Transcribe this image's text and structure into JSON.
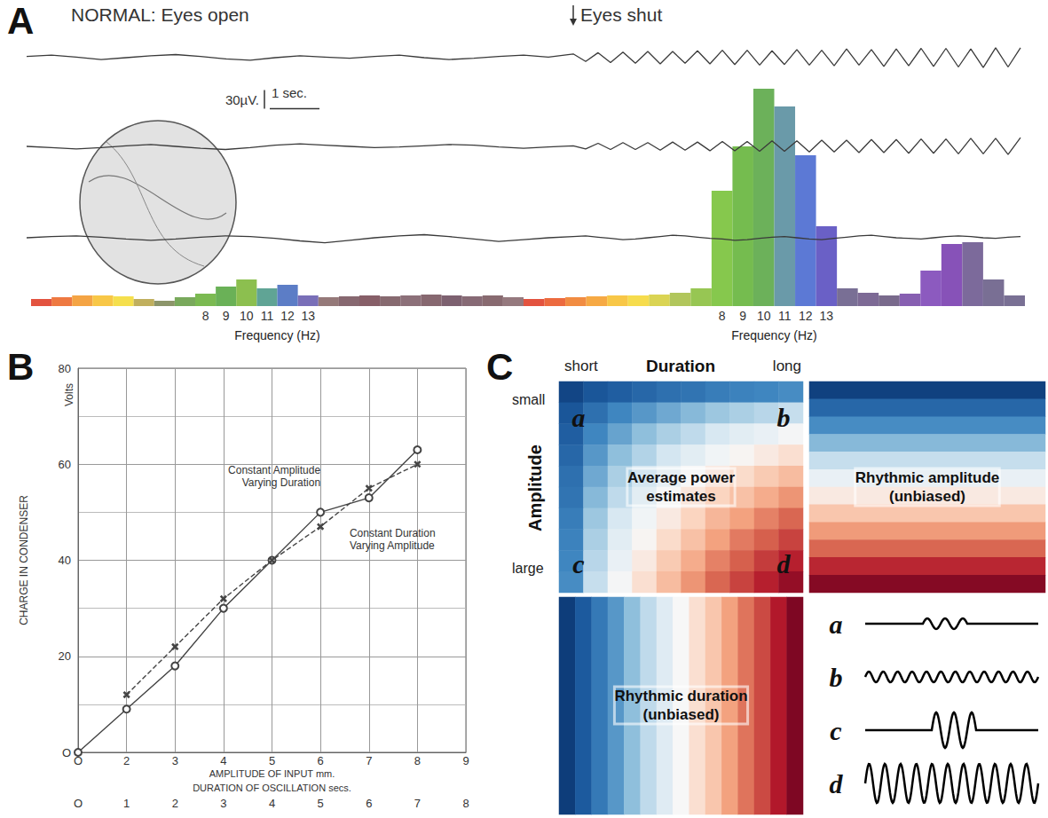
{
  "chart_data": [
    {
      "panel": "A",
      "type": "line",
      "title": "NORMAL: Eyes open",
      "annotations": [
        {
          "text": "Eyes shut",
          "x": 11
        }
      ],
      "scale_bar": {
        "amplitude": 30,
        "amplitude_label": "30µV.",
        "time": 1,
        "time_label": "1 sec."
      },
      "x": [
        0,
        0.5,
        1,
        1.5,
        2,
        2.5,
        3,
        3.5,
        4,
        4.5,
        5,
        5.5,
        6,
        6.5,
        7,
        7.5,
        8,
        8.5,
        9,
        9.5,
        10,
        10.5,
        11,
        11.25,
        11.5,
        11.75,
        12,
        12.25,
        12.5,
        12.75,
        13,
        13.25,
        13.5,
        13.75,
        14,
        14.25,
        14.5,
        14.75,
        15,
        15.25,
        15.5,
        15.75,
        16,
        16.25,
        16.5,
        16.75,
        17,
        17.25,
        17.5,
        17.75,
        18,
        18.25,
        18.5,
        18.75,
        19,
        19.25,
        19.5,
        19.75,
        20
      ],
      "xlim": [
        0,
        20
      ],
      "ylim": [
        -50,
        50
      ],
      "tick_labels": false,
      "series": [
        {
          "color": "#3a3a3a",
          "values": [
            2,
            4,
            1,
            -3,
            0,
            3,
            5,
            2,
            -2,
            -4,
            0,
            3,
            1,
            -1,
            2,
            4,
            0,
            -3,
            -1,
            2,
            4,
            1,
            6,
            -6,
            8,
            -8,
            9,
            -9,
            10,
            -10,
            10,
            -9,
            11,
            -10,
            12,
            -11,
            12,
            -12,
            11,
            -11,
            13,
            -12,
            12,
            -13,
            14,
            -12,
            13,
            -14,
            14,
            -13,
            15,
            -14,
            15,
            -15,
            14,
            -16,
            16,
            -15,
            16
          ]
        },
        {
          "color": "#3a3a3a",
          "values": [
            0,
            -2,
            -4,
            -2,
            1,
            3,
            0,
            -3,
            -5,
            -2,
            2,
            4,
            2,
            0,
            -2,
            -1,
            1,
            3,
            2,
            -1,
            -3,
            -1,
            1,
            -4,
            5,
            -5,
            6,
            -5,
            6,
            -6,
            7,
            -6,
            7,
            -7,
            8,
            -7,
            8,
            -8,
            9,
            -8,
            9,
            -9,
            10,
            -9,
            10,
            -10,
            11,
            -10,
            11,
            -11,
            12,
            -11,
            12,
            -12,
            13,
            -12,
            13,
            -13,
            14
          ]
        },
        {
          "color": "#3a3a3a",
          "values": [
            0,
            2,
            3,
            1,
            -2,
            -4,
            -2,
            1,
            3,
            2,
            -1,
            -5,
            -8,
            -4,
            0,
            3,
            5,
            2,
            -2,
            -6,
            -3,
            0,
            2,
            3,
            1,
            -1,
            -3,
            -2,
            0,
            2,
            4,
            3,
            1,
            -1,
            -2,
            -4,
            -3,
            -1,
            1,
            2,
            0,
            -2,
            -3,
            -1,
            1,
            3,
            4,
            2,
            0,
            -1,
            -2,
            0,
            2,
            3,
            2,
            0,
            -1,
            1,
            2
          ]
        }
      ]
    },
    {
      "type": "bar",
      "xlabel": "Frequency (Hz)",
      "categories": [
        null,
        null,
        null,
        null,
        null,
        null,
        null,
        null,
        "8",
        "9",
        "10",
        "11",
        "12",
        "13",
        null,
        null,
        null,
        null,
        null,
        null,
        null,
        null,
        null,
        null
      ],
      "values": [
        8,
        10,
        12,
        12,
        11,
        8,
        6,
        10,
        14,
        22,
        30,
        20,
        24,
        12,
        10,
        11,
        12,
        11,
        12,
        13,
        12,
        11,
        12,
        10
      ],
      "colors": [
        "#e0402a",
        "#ec6a2c",
        "#f39a30",
        "#f7c133",
        "#f4dc3a",
        "#b9a64c",
        "#7f8a5a",
        "#6aa04a",
        "#6db33f",
        "#5aa845",
        "#7fb83c",
        "#4f9a8a",
        "#4a6fc0",
        "#6a5fb0",
        "#8a6a6a",
        "#7a5860",
        "#7a4e58",
        "#7a5a60",
        "#80606a",
        "#7a5860",
        "#6f5060",
        "#7a5a66",
        "#7b5a60",
        "#8a6a70"
      ],
      "ylim": [
        0,
        250
      ],
      "tick_labels": "x"
    },
    {
      "type": "bar",
      "xlabel": "Frequency (Hz)",
      "categories": [
        null,
        null,
        null,
        null,
        null,
        null,
        null,
        null,
        null,
        "8",
        "9",
        "10",
        "11",
        "12",
        "13",
        null,
        null,
        null,
        null,
        null,
        null,
        null,
        null,
        null
      ],
      "values": [
        8,
        9,
        10,
        11,
        12,
        12,
        13,
        15,
        20,
        130,
        180,
        245,
        225,
        170,
        90,
        20,
        15,
        12,
        14,
        40,
        70,
        72,
        30,
        12
      ],
      "colors": [
        "#e0402a",
        "#ea5a2a",
        "#f07f2e",
        "#f5a030",
        "#f7c133",
        "#f5d83a",
        "#d6cf40",
        "#a8c04a",
        "#8cc040",
        "#79c23a",
        "#66b53c",
        "#5ca848",
        "#5a8fa0",
        "#4a6ad0",
        "#5a4fc0",
        "#6a5f8a",
        "#6f5a8a",
        "#6a5a80",
        "#7a4ea8",
        "#8048b8",
        "#7a3fb0",
        "#6e5a90",
        "#6a5f88",
        "#6a6088"
      ],
      "ylim": [
        0,
        250
      ],
      "tick_labels": "x"
    },
    {
      "panel": "B",
      "type": "line",
      "ylabel": "CHARGE IN CONDENSER",
      "ylabel_unit": "Volts",
      "xlabel": "DURATION OF OSCILLATION secs.",
      "x2label": "AMPLITUDE OF INPUT mm.",
      "x2_origin_label": "O",
      "xlim": [
        0,
        8
      ],
      "xticks": [
        {
          "value": 0,
          "label": "O"
        },
        1,
        2,
        3,
        4,
        5,
        6,
        7,
        8
      ],
      "x2lim": [
        1,
        9
      ],
      "x2ticks": [
        2,
        3,
        4,
        5,
        6,
        7,
        8,
        9
      ],
      "ylim": [
        0,
        80
      ],
      "yticks": [
        {
          "value": 0,
          "label": "O"
        },
        20,
        40,
        60,
        80
      ],
      "grid": true,
      "series": [
        {
          "name": "Constant Amplitude Varying Duration",
          "x": [
            0,
            1,
            2,
            3,
            4,
            5,
            6,
            7
          ],
          "values": [
            0,
            9,
            18,
            30,
            40,
            50,
            53,
            63
          ],
          "color": "#444444",
          "marker": "circle",
          "line_style": "solid"
        },
        {
          "name": "Constant Duration Varying Amplitude",
          "axis": "x2",
          "x": [
            2,
            3,
            4,
            5,
            6,
            7,
            8
          ],
          "values": [
            12,
            22,
            32,
            40,
            47,
            55,
            60
          ],
          "color": "#444444",
          "marker": "cross",
          "line_style": "dashed"
        }
      ]
    },
    {
      "panel": "C",
      "type": "heatmap",
      "title": "Average power estimates",
      "xlabel": "Duration",
      "x_end_labels": [
        "short",
        "long"
      ],
      "ylabel": "Amplitude",
      "y_end_labels": [
        "small",
        "large"
      ],
      "corner_labels": [
        "a",
        "b",
        "c",
        "d"
      ],
      "example_labels": [
        "a",
        "b",
        "c",
        "d"
      ],
      "color_range": [
        0,
        1
      ],
      "tick_labels": false,
      "cells": [
        [
          0.05,
          0.09,
          0.11,
          0.13,
          0.15,
          0.16,
          0.18,
          0.19,
          0.2,
          0.21
        ],
        [
          0.09,
          0.15,
          0.2,
          0.23,
          0.26,
          0.29,
          0.32,
          0.34,
          0.36,
          0.38
        ],
        [
          0.11,
          0.2,
          0.25,
          0.3,
          0.34,
          0.37,
          0.41,
          0.44,
          0.46,
          0.49
        ],
        [
          0.13,
          0.23,
          0.3,
          0.35,
          0.4,
          0.44,
          0.48,
          0.51,
          0.54,
          0.57
        ],
        [
          0.15,
          0.26,
          0.34,
          0.4,
          0.45,
          0.5,
          0.54,
          0.58,
          0.62,
          0.65
        ],
        [
          0.16,
          0.29,
          0.37,
          0.44,
          0.5,
          0.55,
          0.6,
          0.64,
          0.68,
          0.72
        ],
        [
          0.18,
          0.32,
          0.41,
          0.48,
          0.54,
          0.6,
          0.66,
          0.7,
          0.75,
          0.79
        ],
        [
          0.19,
          0.34,
          0.44,
          0.51,
          0.58,
          0.64,
          0.7,
          0.76,
          0.8,
          0.84
        ],
        [
          0.2,
          0.36,
          0.46,
          0.54,
          0.62,
          0.68,
          0.75,
          0.8,
          0.85,
          0.89
        ],
        [
          0.21,
          0.38,
          0.49,
          0.57,
          0.65,
          0.72,
          0.79,
          0.84,
          0.89,
          0.94
        ]
      ]
    },
    {
      "type": "heatmap",
      "title": "Rhythmic amplitude (unbiased)",
      "color_range": [
        0,
        1
      ],
      "tick_labels": false,
      "cells": [
        [
          0.04
        ],
        [
          0.13
        ],
        [
          0.21
        ],
        [
          0.29
        ],
        [
          0.38
        ],
        [
          0.46
        ],
        [
          0.54
        ],
        [
          0.63
        ],
        [
          0.71
        ],
        [
          0.79
        ],
        [
          0.88
        ],
        [
          0.96
        ]
      ]
    },
    {
      "type": "heatmap",
      "title": "Rhythmic duration (unbiased)",
      "color_range": [
        0,
        1
      ],
      "tick_labels": false,
      "cells": [
        [
          0.03,
          0.1,
          0.17,
          0.23,
          0.3,
          0.37,
          0.43,
          0.5,
          0.57,
          0.63,
          0.7,
          0.77,
          0.83,
          0.9,
          0.97
        ]
      ]
    }
  ]
}
